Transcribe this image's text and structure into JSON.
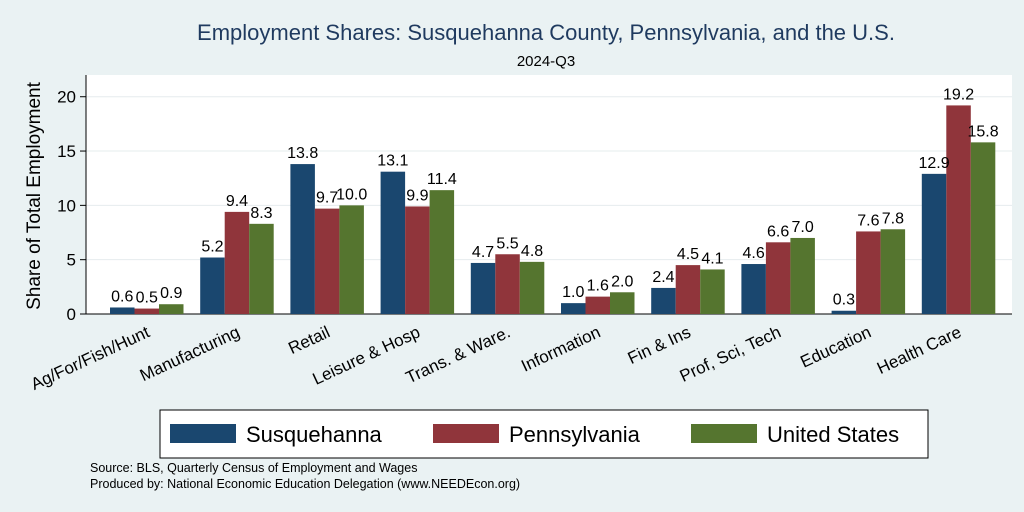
{
  "chart_data": {
    "type": "bar",
    "title": "Employment Shares: Susquehanna County, Pennsylvania, and the U.S.",
    "subtitle": "2024-Q3",
    "ylabel": "Share of Total Employment",
    "xlabel": "",
    "ylim": [
      0,
      22
    ],
    "yticks": [
      0,
      5,
      10,
      15,
      20
    ],
    "legend_position": "bottom",
    "categories": [
      "Ag/For/Fish/Hunt",
      "Manufacturing",
      "Retail",
      "Leisure & Hosp",
      "Trans. & Ware.",
      "Information",
      "Fin & Ins",
      "Prof, Sci, Tech",
      "Education",
      "Health Care"
    ],
    "series": [
      {
        "name": "Susquehanna",
        "color": "#1a476f",
        "values": [
          0.6,
          5.2,
          13.8,
          13.1,
          4.7,
          1.0,
          2.4,
          4.6,
          0.3,
          12.9
        ],
        "labels": [
          "0.6",
          "5.2",
          "13.8",
          "13.1",
          "4.7",
          "1.0",
          "2.4",
          "4.6",
          "0.3",
          "12.9"
        ]
      },
      {
        "name": "Pennsylvania",
        "color": "#90353b",
        "values": [
          0.5,
          9.4,
          9.7,
          9.9,
          5.5,
          1.6,
          4.5,
          6.6,
          7.6,
          19.2
        ],
        "labels": [
          "0.5",
          "9.4",
          "9.7",
          "9.9",
          "5.5",
          "1.6",
          "4.5",
          "6.6",
          "7.6",
          "19.2"
        ]
      },
      {
        "name": "United States",
        "color": "#55752f",
        "values": [
          0.9,
          8.3,
          10.0,
          11.4,
          4.8,
          2.0,
          4.1,
          7.0,
          7.8,
          15.8
        ],
        "labels": [
          "0.9",
          "8.3",
          "10.0",
          "11.4",
          "4.8",
          "2.0",
          "4.1",
          "7.0",
          "7.8",
          "15.8"
        ]
      }
    ],
    "grid": true
  },
  "notes": {
    "source": "Source: BLS, Quarterly Census of Employment and Wages",
    "produced": "Produced by: National Economic Education Delegation (www.NEEDEcon.org)"
  }
}
